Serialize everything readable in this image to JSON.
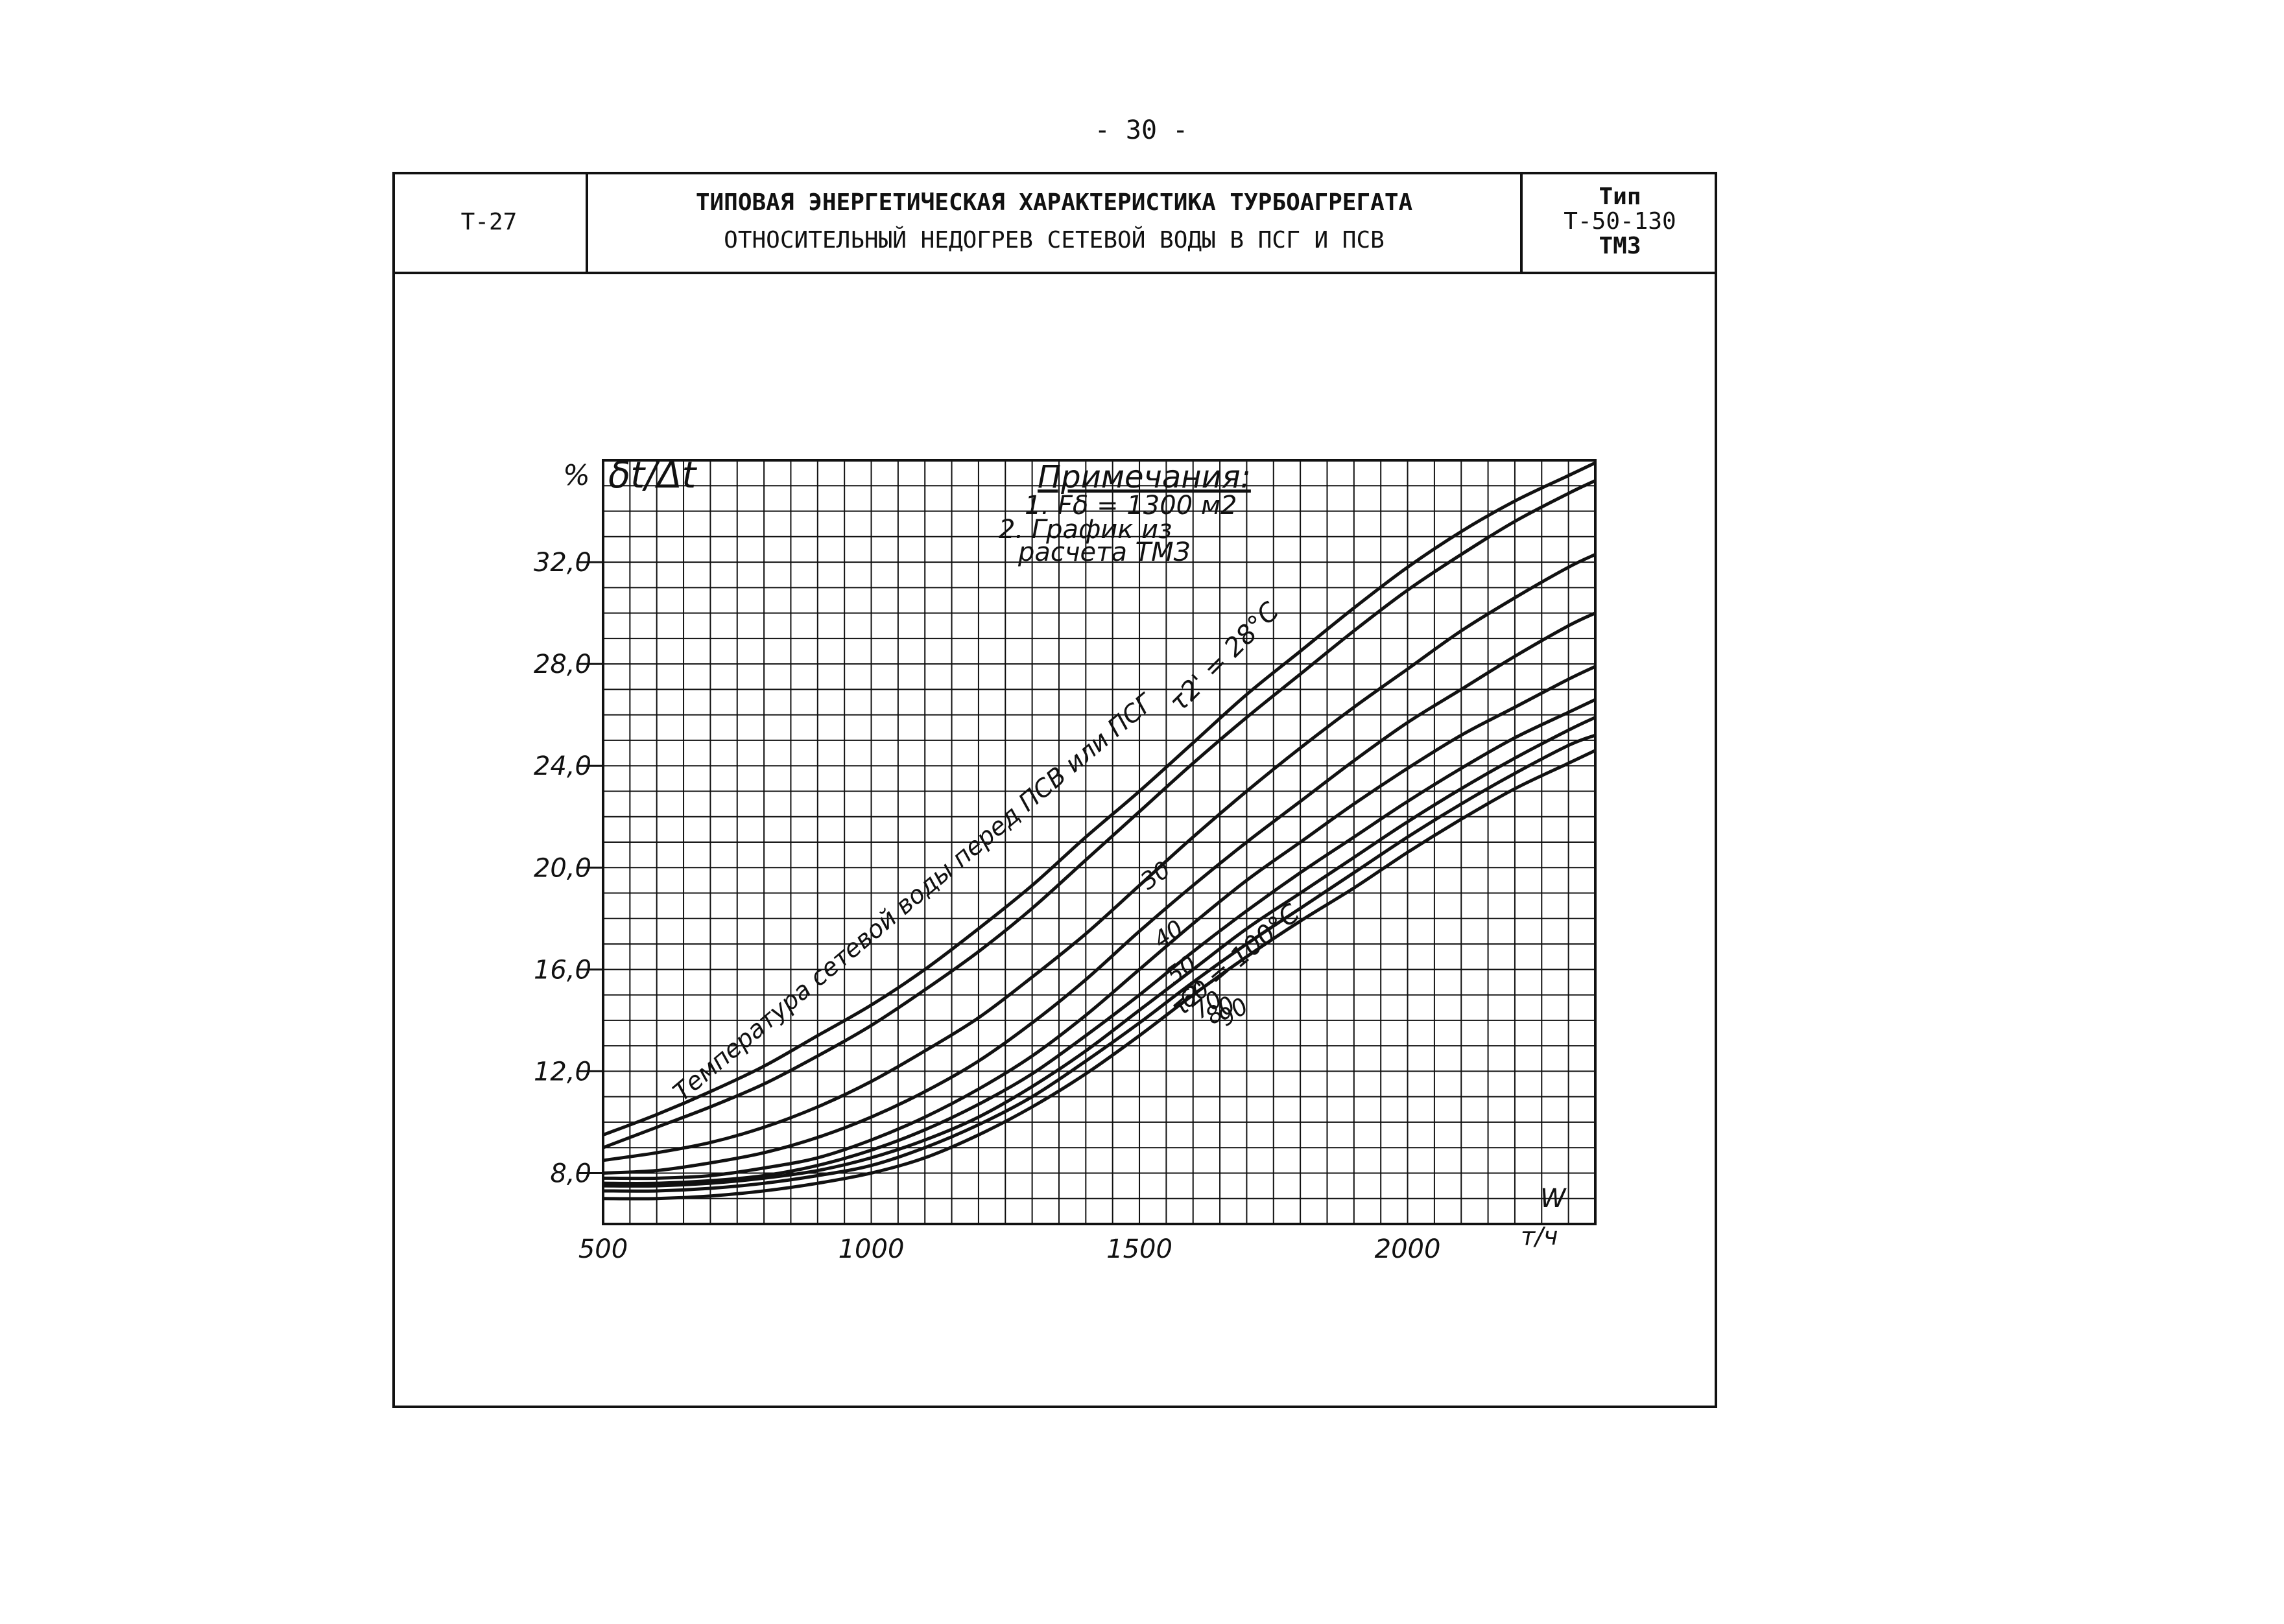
{
  "page_number": "- 30 -",
  "header": {
    "code": "Т-27",
    "title_line1": "ТИПОВАЯ ЭНЕРГЕТИЧЕСКАЯ ХАРАКТЕРИСТИКА ТУРБОАГРЕГАТА",
    "title_line2": "ОТНОСИТЕЛЬНЫЙ НЕДОГРЕВ СЕТЕВОЙ ВОДЫ В ПСГ И ПСВ",
    "type_label": "Тип",
    "type_model": "Т-50-130",
    "type_maker": "ТМЗ"
  },
  "chart_data": {
    "type": "line",
    "title": "",
    "ylabel": "δt/Δt",
    "y_unit": "%",
    "xlabel": "W",
    "x_unit": "т/ч",
    "xlim": [
      500,
      2350
    ],
    "ylim": [
      6,
      36
    ],
    "x_ticks": [
      500,
      1000,
      1500,
      2000
    ],
    "x_tick_labels": [
      "500",
      "1000",
      "1500",
      "2000"
    ],
    "y_ticks": [
      8,
      12,
      16,
      20,
      24,
      28,
      32
    ],
    "y_tick_labels": [
      "8,0",
      "12,0",
      "16,0",
      "20,0",
      "24,0",
      "28,0",
      "32,0"
    ],
    "grid": true,
    "notes": {
      "heading": "Примечания:",
      "line1": "1. Fδ = 1300 м2",
      "line2": "2. График из",
      "line3": "расчета ТМЗ"
    },
    "annotations": {
      "curve_family_label": "Температура сетевой воды перед ПСВ или ПСГ",
      "top_curve_label": "τ2' = 28°C",
      "bottom_curve_label": "τ2' = 100°C"
    },
    "series": [
      {
        "name": "28",
        "x": [
          500,
          600,
          700,
          800,
          900,
          1000,
          1100,
          1200,
          1300,
          1400,
          1500,
          1600,
          1700,
          1800,
          1900,
          2000,
          2100,
          2200,
          2300,
          2350
        ],
        "y": [
          9.5,
          10.3,
          11.2,
          12.2,
          13.4,
          14.6,
          16.0,
          17.6,
          19.3,
          21.2,
          23.0,
          24.9,
          26.8,
          28.5,
          30.2,
          31.8,
          33.2,
          34.4,
          35.4,
          35.9
        ]
      },
      {
        "name": "30",
        "x": [
          500,
          600,
          700,
          800,
          900,
          1000,
          1100,
          1200,
          1300,
          1400,
          1500,
          1600,
          1700,
          1800,
          1900,
          2000,
          2100,
          2200,
          2300,
          2350
        ],
        "y": [
          9.0,
          9.8,
          10.6,
          11.5,
          12.6,
          13.8,
          15.2,
          16.7,
          18.4,
          20.3,
          22.2,
          24.1,
          25.9,
          27.6,
          29.3,
          30.9,
          32.3,
          33.6,
          34.7,
          35.2
        ]
      },
      {
        "name": "40",
        "x": [
          500,
          600,
          700,
          800,
          900,
          1000,
          1100,
          1200,
          1300,
          1400,
          1500,
          1600,
          1700,
          1800,
          1900,
          2000,
          2100,
          2200,
          2300,
          2350
        ],
        "y": [
          8.5,
          8.8,
          9.2,
          9.8,
          10.6,
          11.6,
          12.8,
          14.1,
          15.7,
          17.4,
          19.3,
          21.2,
          23.0,
          24.7,
          26.3,
          27.8,
          29.3,
          30.6,
          31.8,
          32.3
        ]
      },
      {
        "name": "50",
        "x": [
          500,
          600,
          700,
          800,
          900,
          1000,
          1100,
          1200,
          1300,
          1400,
          1500,
          1600,
          1700,
          1800,
          1900,
          2000,
          2100,
          2200,
          2300,
          2350
        ],
        "y": [
          8.0,
          8.1,
          8.4,
          8.8,
          9.4,
          10.2,
          11.2,
          12.4,
          13.9,
          15.6,
          17.5,
          19.3,
          21.0,
          22.6,
          24.2,
          25.7,
          27.0,
          28.3,
          29.5,
          30.0
        ]
      },
      {
        "name": "60",
        "x": [
          500,
          600,
          700,
          800,
          900,
          1000,
          1100,
          1200,
          1300,
          1400,
          1500,
          1600,
          1700,
          1800,
          1900,
          2000,
          2100,
          2200,
          2300,
          2350
        ],
        "y": [
          7.8,
          7.8,
          7.9,
          8.2,
          8.6,
          9.3,
          10.2,
          11.3,
          12.6,
          14.2,
          16.0,
          17.8,
          19.5,
          21.0,
          22.5,
          23.9,
          25.2,
          26.3,
          27.4,
          27.9
        ]
      },
      {
        "name": "70",
        "x": [
          500,
          600,
          700,
          800,
          900,
          1000,
          1100,
          1200,
          1300,
          1400,
          1500,
          1600,
          1700,
          1800,
          1900,
          2000,
          2100,
          2200,
          2300,
          2350
        ],
        "y": [
          7.6,
          7.6,
          7.7,
          7.9,
          8.3,
          8.9,
          9.7,
          10.7,
          11.9,
          13.4,
          15.0,
          16.7,
          18.3,
          19.8,
          21.2,
          22.6,
          23.9,
          25.1,
          26.1,
          26.6
        ]
      },
      {
        "name": "80",
        "x": [
          500,
          600,
          700,
          800,
          900,
          1000,
          1100,
          1200,
          1300,
          1400,
          1500,
          1600,
          1700,
          1800,
          1900,
          2000,
          2100,
          2200,
          2300,
          2350
        ],
        "y": [
          7.5,
          7.5,
          7.6,
          7.8,
          8.1,
          8.6,
          9.3,
          10.2,
          11.4,
          12.8,
          14.4,
          16.0,
          17.6,
          19.0,
          20.4,
          21.8,
          23.1,
          24.3,
          25.4,
          25.9
        ]
      },
      {
        "name": "90",
        "x": [
          500,
          600,
          700,
          800,
          900,
          1000,
          1100,
          1200,
          1300,
          1400,
          1500,
          1600,
          1700,
          1800,
          1900,
          2000,
          2100,
          2200,
          2300,
          2350
        ],
        "y": [
          7.3,
          7.3,
          7.4,
          7.6,
          7.9,
          8.3,
          9.0,
          9.9,
          11.0,
          12.4,
          13.9,
          15.5,
          17.0,
          18.4,
          19.8,
          21.2,
          22.5,
          23.7,
          24.8,
          25.2
        ]
      },
      {
        "name": "100",
        "x": [
          500,
          600,
          700,
          800,
          900,
          1000,
          1100,
          1200,
          1300,
          1400,
          1500,
          1600,
          1700,
          1800,
          1900,
          2000,
          2100,
          2200,
          2300,
          2350
        ],
        "y": [
          7.0,
          7.0,
          7.1,
          7.3,
          7.6,
          8.0,
          8.6,
          9.5,
          10.6,
          11.9,
          13.4,
          15.0,
          16.5,
          17.9,
          19.2,
          20.6,
          21.9,
          23.1,
          24.1,
          24.6
        ]
      }
    ]
  }
}
